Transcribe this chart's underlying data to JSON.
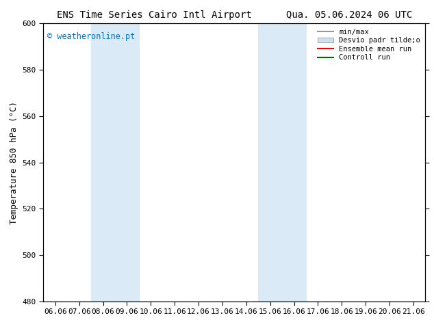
{
  "title_left": "ENS Time Series Cairo Intl Airport",
  "title_right": "Qua. 05.06.2024 06 UTC",
  "ylabel": "Temperature 850 hPa (°C)",
  "xlim_labels": [
    "06.06",
    "07.06",
    "08.06",
    "09.06",
    "10.06",
    "11.06",
    "12.06",
    "13.06",
    "14.06",
    "15.06",
    "16.06",
    "17.06",
    "18.06",
    "19.06",
    "20.06",
    "21.06"
  ],
  "ylim": [
    480,
    600
  ],
  "yticks": [
    480,
    500,
    520,
    540,
    560,
    580,
    600
  ],
  "bg_color": "#ffffff",
  "shaded_bands": [
    {
      "x0_label": "08.06",
      "x1_label": "10.06"
    },
    {
      "x0_label": "15.06",
      "x1_label": "17.06"
    }
  ],
  "shaded_color": "#dbeaf7",
  "watermark_text": "© weatheronline.pt",
  "watermark_color": "#0077cc",
  "legend_entries": [
    {
      "label": "min/max",
      "color": "#999999",
      "type": "line",
      "linewidth": 1.5
    },
    {
      "label": "Desvio padr tilde;o",
      "color": "#cce0f0",
      "type": "patch"
    },
    {
      "label": "Ensemble mean run",
      "color": "#ff0000",
      "type": "line",
      "linewidth": 1.5
    },
    {
      "label": "Controll run",
      "color": "#006600",
      "type": "line",
      "linewidth": 1.5
    }
  ],
  "tick_label_fontsize": 8,
  "axis_label_fontsize": 9,
  "title_fontsize": 10
}
